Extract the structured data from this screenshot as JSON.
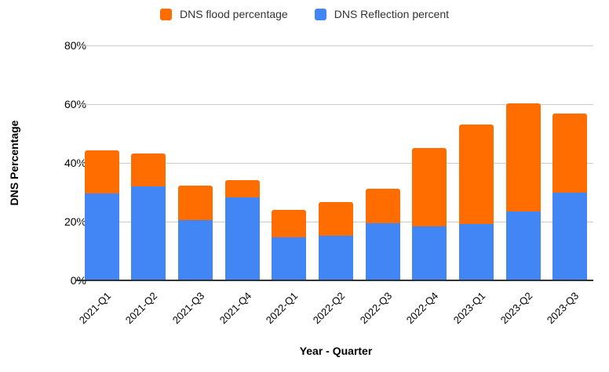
{
  "legend": {
    "items": [
      {
        "label": "DNS flood percentage",
        "color": "#FF6D01"
      },
      {
        "label": "DNS Reflection percent",
        "color": "#4285F4"
      }
    ]
  },
  "axes": {
    "y_title": "DNS Percentage",
    "x_title": "Year - Quarter",
    "y_ticks": [
      "80%",
      "60%",
      "40%",
      "20%",
      "0%"
    ]
  },
  "colors": {
    "flood_orange": "#FF6D01",
    "reflection_blue": "#4285F4",
    "gridline": "#cccccc",
    "axis_line": "#333333",
    "background": "#ffffff"
  },
  "chart_data": {
    "type": "bar",
    "stacked": true,
    "title": "",
    "xlabel": "Year - Quarter",
    "ylabel": "DNS Percentage",
    "ylim": [
      0,
      80
    ],
    "y_tick_step": 20,
    "grid": true,
    "legend_position": "top",
    "categories": [
      "2021-Q1",
      "2021-Q2",
      "2021-Q3",
      "2021-Q4",
      "2022-Q1",
      "2022-Q2",
      "2022-Q3",
      "2022-Q4",
      "2023-Q1",
      "2023-Q2",
      "2023-Q3"
    ],
    "series": [
      {
        "name": "DNS Reflection percent",
        "color": "#4285F4",
        "values": [
          29.5,
          31.9,
          20.5,
          28.3,
          14.8,
          15.3,
          19.6,
          18.3,
          19.3,
          23.4,
          30.0
        ]
      },
      {
        "name": "DNS flood percentage",
        "color": "#FF6D01",
        "values": [
          14.8,
          11.3,
          11.8,
          5.9,
          9.3,
          11.3,
          11.6,
          26.7,
          33.9,
          37.0,
          26.9
        ]
      }
    ],
    "stack_totals": [
      44.3,
      43.2,
      32.3,
      34.2,
      24.1,
      26.6,
      31.2,
      45.0,
      53.2,
      60.4,
      56.9
    ]
  }
}
